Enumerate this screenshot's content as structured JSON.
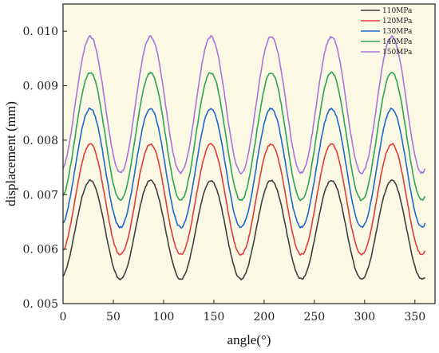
{
  "chart_data": {
    "type": "line",
    "xlabel": "angle(°)",
    "ylabel": "displacement (mm)",
    "xlim": [
      0,
      360
    ],
    "ylim": [
      0.005,
      0.0105
    ],
    "xticks": [
      "0",
      "50",
      "100",
      "150",
      "200",
      "250",
      "300",
      "350"
    ],
    "yticks": [
      "0. 005",
      "0. 006",
      "0. 007",
      "0. 008",
      "0. 009",
      "0. 010"
    ],
    "grid": false,
    "legend_position": "top-right",
    "plot_background": "#fbf9e4",
    "period_deg": 60,
    "peak_angle_deg": 27,
    "series": [
      {
        "name": "110MPa",
        "color": "#404040",
        "min": 0.00545,
        "max": 0.00726,
        "start": 0.0055,
        "end": 0.00548
      },
      {
        "name": "120MPa",
        "color": "#e33b3b",
        "min": 0.0059,
        "max": 0.00793,
        "start": 0.00598,
        "end": 0.00597
      },
      {
        "name": "130MPa",
        "color": "#1f66d1",
        "min": 0.0064,
        "max": 0.00858,
        "start": 0.00648,
        "end": 0.00648
      },
      {
        "name": "140MPa",
        "color": "#2ea35a",
        "min": 0.0069,
        "max": 0.00924,
        "start": 0.00698,
        "end": 0.00697
      },
      {
        "name": "150MPa",
        "color": "#a874e0",
        "min": 0.0074,
        "max": 0.0099,
        "start": 0.00748,
        "end": 0.00748
      }
    ]
  }
}
